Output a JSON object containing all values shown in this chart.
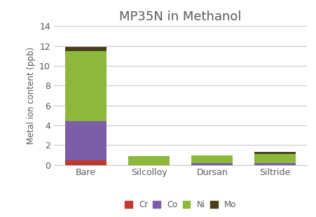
{
  "title": "MP35N in Methanol",
  "ylabel": "Metal ion content (ppb)",
  "categories": [
    "Bare",
    "Silcolloy",
    "Dursan",
    "Siltride"
  ],
  "series": {
    "Cr": [
      0.45,
      0.0,
      0.0,
      0.0
    ],
    "Co": [
      4.0,
      0.0,
      0.2,
      0.2
    ],
    "Ni": [
      7.0,
      0.9,
      0.75,
      0.9
    ],
    "Mo": [
      0.45,
      0.0,
      0.0,
      0.18
    ]
  },
  "colors": {
    "Cr": "#c0392b",
    "Co": "#7b5ea7",
    "Ni": "#8db83b",
    "Mo": "#4a3e1a"
  },
  "ylim": [
    0,
    14
  ],
  "yticks": [
    0,
    2,
    4,
    6,
    8,
    10,
    12,
    14
  ],
  "title_color": "#595959",
  "label_color": "#595959",
  "tick_color": "#595959",
  "background_color": "#ffffff",
  "grid_color": "#c8c8c8",
  "title_fontsize": 13,
  "label_fontsize": 8.5,
  "tick_fontsize": 9,
  "legend_fontsize": 8.5,
  "bar_width": 0.65
}
